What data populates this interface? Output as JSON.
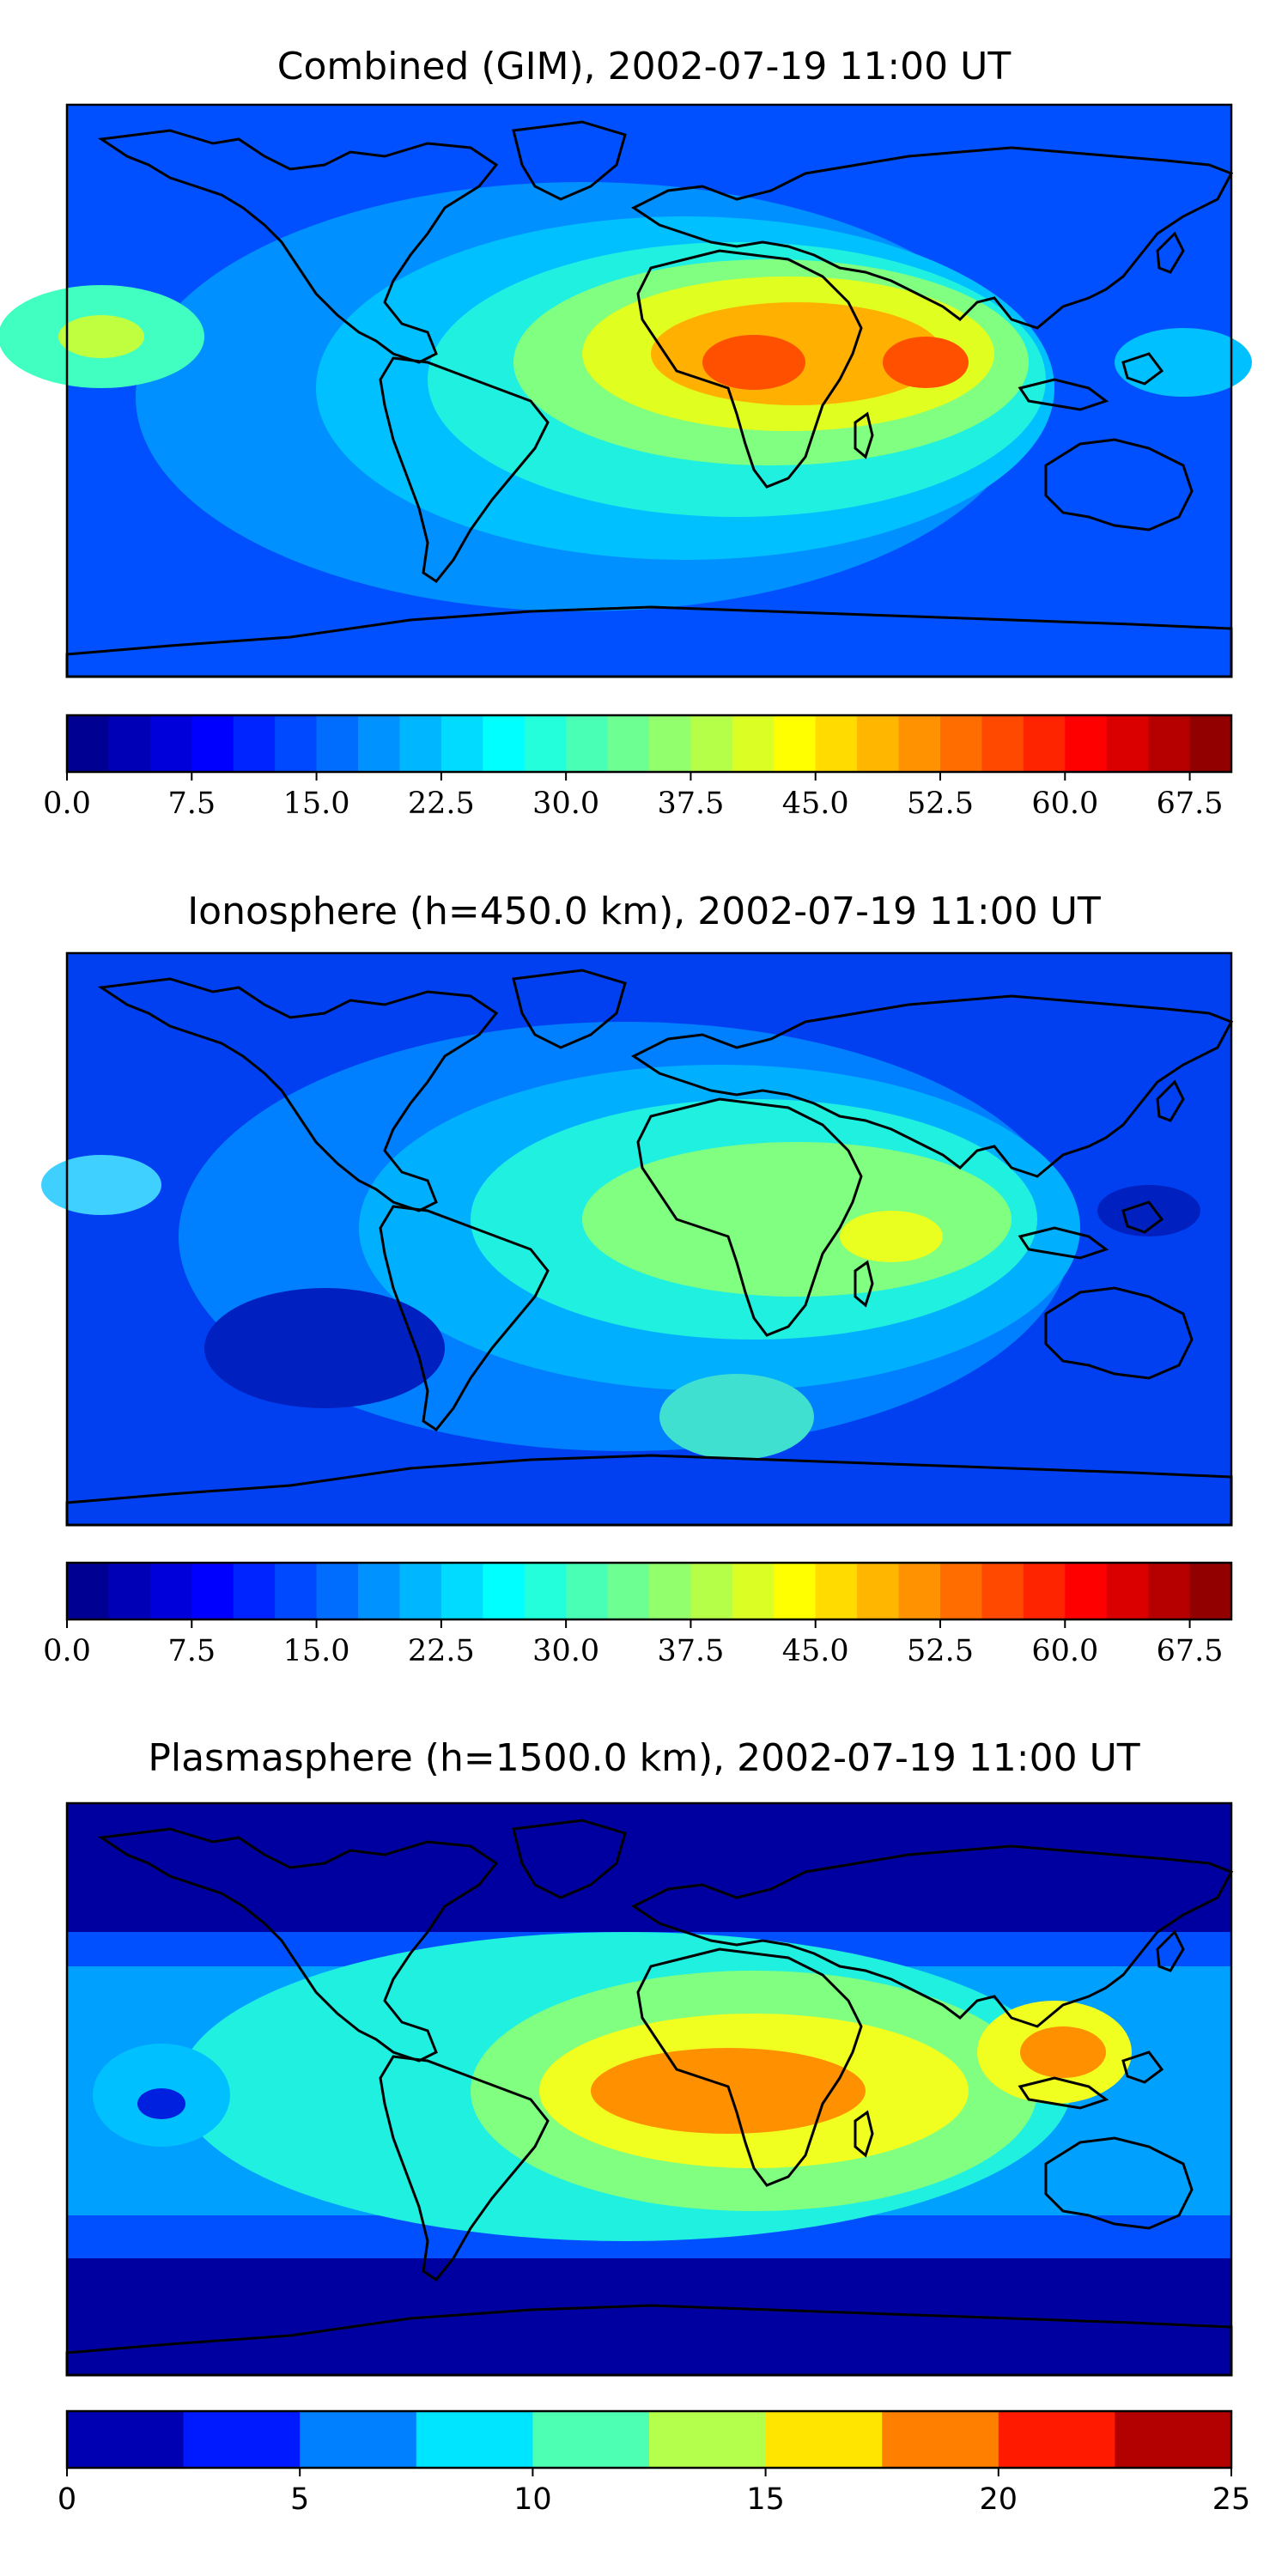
{
  "figure": {
    "panels": [
      {
        "title": "Combined (GIM), 2002-07-19 11:00 UT",
        "colorbar": {
          "min": 0,
          "max": 70,
          "levels": 28,
          "tick_labels": [
            "0.0",
            "7.5",
            "15.0",
            "22.5",
            "30.0",
            "37.5",
            "45.0",
            "52.5",
            "60.0",
            "67.5"
          ]
        }
      },
      {
        "title": "Ionosphere  (h=450.0 km), 2002-07-19 11:00 UT",
        "colorbar": {
          "min": 0,
          "max": 70,
          "levels": 28,
          "tick_labels": [
            "0.0",
            "7.5",
            "15.0",
            "22.5",
            "30.0",
            "37.5",
            "45.0",
            "52.5",
            "60.0",
            "67.5"
          ]
        }
      },
      {
        "title": "Plasmasphere (h=1500.0 km), 2002-07-19 11:00 UT",
        "colorbar": {
          "min": 0,
          "max": 25,
          "levels": 10,
          "tick_labels": [
            "0",
            "5",
            "10",
            "15",
            "20",
            "25"
          ]
        }
      }
    ]
  },
  "colormap": "jet"
}
